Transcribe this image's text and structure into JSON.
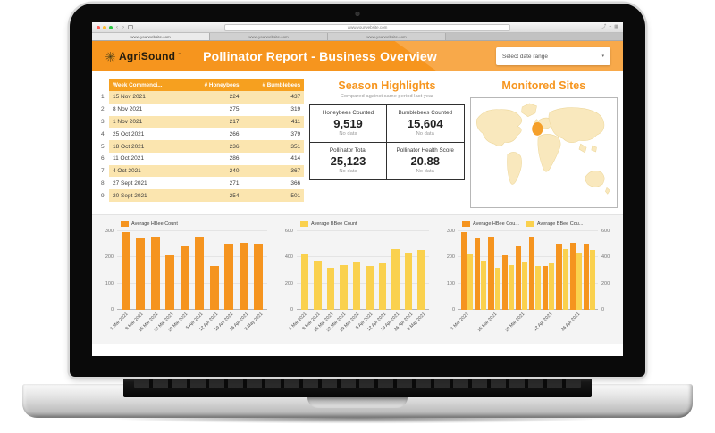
{
  "browser": {
    "url": "www.yourwebsite.com",
    "tabs": [
      "www.yourwebsite.com",
      "www.yourwebsite.com",
      "www.yourwebsite.com"
    ],
    "back_glyph": "‹",
    "forward_glyph": "›",
    "share_glyph": "⤴",
    "plus_glyph": "+",
    "tabs_glyph": "▦"
  },
  "header": {
    "brand": "AgriSound",
    "trademark": "™",
    "title": "Pollinator Report - Business Overview",
    "date_selector": {
      "label": "Select date range",
      "caret": "▾"
    }
  },
  "table": {
    "headers": [
      "Week Commenci...",
      "# Honeybees",
      "# Bumblebees"
    ],
    "rows": [
      {
        "index": "1.",
        "week": "15 Nov 2021",
        "honeybees": "224",
        "bumblebees": "437"
      },
      {
        "index": "2.",
        "week": "8 Nov 2021",
        "honeybees": "275",
        "bumblebees": "319"
      },
      {
        "index": "3.",
        "week": "1 Nov 2021",
        "honeybees": "217",
        "bumblebees": "411"
      },
      {
        "index": "4.",
        "week": "25 Oct 2021",
        "honeybees": "266",
        "bumblebees": "379"
      },
      {
        "index": "5.",
        "week": "18 Oct 2021",
        "honeybees": "236",
        "bumblebees": "351"
      },
      {
        "index": "6.",
        "week": "11 Oct 2021",
        "honeybees": "286",
        "bumblebees": "414"
      },
      {
        "index": "7.",
        "week": "4 Oct 2021",
        "honeybees": "240",
        "bumblebees": "367"
      },
      {
        "index": "8.",
        "week": "27 Sept 2021",
        "honeybees": "271",
        "bumblebees": "366"
      },
      {
        "index": "9.",
        "week": "20 Sept 2021",
        "honeybees": "254",
        "bumblebees": "501"
      }
    ]
  },
  "highlights": {
    "title": "Season Highlights",
    "subtitle": "Compared against same period last year",
    "cards": [
      {
        "label": "Honeybees Counted",
        "value": "9,519",
        "note": "No data"
      },
      {
        "label": "Bumblebees Counted",
        "value": "15,604",
        "note": "No data"
      },
      {
        "label": "Pollinator Total",
        "value": "25,123",
        "note": "No data"
      },
      {
        "label": "Pollinator Health Score",
        "value": "20.88",
        "note": "No data"
      }
    ]
  },
  "map": {
    "title": "Monitored Sites"
  },
  "chart_data": [
    {
      "type": "bar",
      "title": "",
      "categories": [
        "1 Mar 2021",
        "8 Mar 2021",
        "15 Mar 2021",
        "22 Mar 2021",
        "29 Mar 2021",
        "5 Apr 2021",
        "12 Apr 2021",
        "19 Apr 2021",
        "26 Apr 2021",
        "3 May 2021"
      ],
      "series": [
        {
          "name": "Average HBee Count",
          "color": "#F5941F",
          "axis": "left",
          "values": [
            295,
            272,
            278,
            208,
            245,
            279,
            166,
            253,
            256,
            251
          ]
        }
      ],
      "ymax": 300,
      "yticks": [
        0,
        100,
        200,
        300
      ],
      "legend_position": "top",
      "grid": true,
      "xtick_every": 1
    },
    {
      "type": "bar",
      "title": "",
      "categories": [
        "1 Mar 2021",
        "8 Mar 2021",
        "15 Mar 2021",
        "22 Mar 2021",
        "29 Mar 2021",
        "5 Apr 2021",
        "12 Apr 2021",
        "19 Apr 2021",
        "26 Apr 2021",
        "3 May 2021"
      ],
      "series": [
        {
          "name": "Average BBee Count",
          "color": "#FAD14E",
          "axis": "left",
          "values": [
            430,
            378,
            323,
            344,
            363,
            332,
            354,
            466,
            437,
            459
          ]
        }
      ],
      "ymax": 600,
      "yticks": [
        0,
        200,
        400,
        600
      ],
      "legend_position": "top",
      "grid": true,
      "xtick_every": 1
    },
    {
      "type": "bar",
      "title": "",
      "categories": [
        "1 Mar 2021",
        "8 Mar 2021",
        "15 Mar 2021",
        "22 Mar 2021",
        "29 Mar 2021",
        "5 Apr 2021",
        "12 Apr 2021",
        "19 Apr 2021",
        "26 Apr 2021",
        "3 May 2021"
      ],
      "series": [
        {
          "name": "Average HBee Cou...",
          "color": "#F5941F",
          "axis": "left",
          "values": [
            295,
            272,
            278,
            208,
            245,
            279,
            166,
            253,
            256,
            251
          ]
        },
        {
          "name": "Average BBee Cou...",
          "color": "#FAD14E",
          "axis": "right",
          "values": [
            430,
            378,
            323,
            344,
            363,
            332,
            354,
            466,
            437,
            459
          ]
        }
      ],
      "ymax": 300,
      "yticks": [
        0,
        100,
        200,
        300
      ],
      "ymax_right": 600,
      "yticks_right": [
        0,
        200,
        400,
        600
      ],
      "legend_position": "top",
      "grid": true,
      "xtick_every": 2
    }
  ],
  "colors": {
    "primary_orange": "#F6951E",
    "light_orange": "#F8A94A",
    "table_header_orange": "#F6A01F",
    "row_cream": "#FBE5AF",
    "bar_orange": "#F5941F",
    "bar_yellow": "#FAD14E"
  }
}
